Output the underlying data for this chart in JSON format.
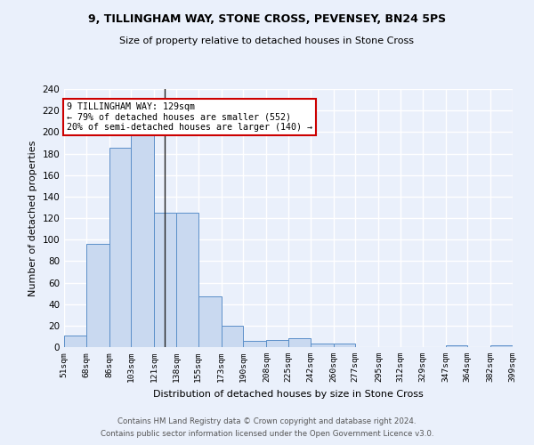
{
  "title1": "9, TILLINGHAM WAY, STONE CROSS, PEVENSEY, BN24 5PS",
  "title2": "Size of property relative to detached houses in Stone Cross",
  "xlabel": "Distribution of detached houses by size in Stone Cross",
  "ylabel": "Number of detached properties",
  "bar_color": "#c9d9f0",
  "bar_edge_color": "#5b8fc9",
  "background_color": "#eaf0fb",
  "grid_color": "#ffffff",
  "annotation_text": "9 TILLINGHAM WAY: 129sqm\n← 79% of detached houses are smaller (552)\n20% of semi-detached houses are larger (140) →",
  "annotation_box_color": "#ffffff",
  "annotation_box_edge": "#cc0000",
  "property_line_x": 129,
  "footer1": "Contains HM Land Registry data © Crown copyright and database right 2024.",
  "footer2": "Contains public sector information licensed under the Open Government Licence v3.0.",
  "bin_edges": [
    51,
    68,
    86,
    103,
    121,
    138,
    155,
    173,
    190,
    208,
    225,
    242,
    260,
    277,
    295,
    312,
    329,
    347,
    364,
    382,
    399
  ],
  "bar_heights": [
    11,
    96,
    185,
    200,
    125,
    125,
    47,
    20,
    6,
    7,
    8,
    3,
    3,
    0,
    0,
    0,
    0,
    2,
    0,
    2
  ],
  "ylim": [
    0,
    240
  ],
  "yticks": [
    0,
    20,
    40,
    60,
    80,
    100,
    120,
    140,
    160,
    180,
    200,
    220,
    240
  ]
}
